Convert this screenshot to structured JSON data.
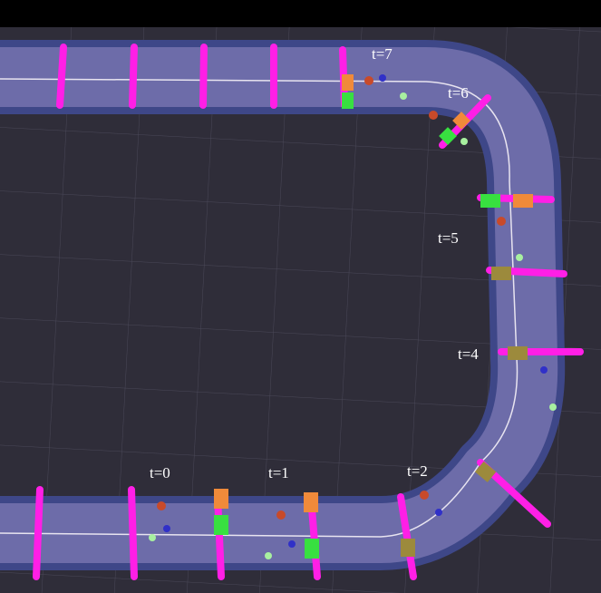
{
  "labels": [
    "t=0",
    "t=1",
    "t=2",
    "t=4",
    "t=5",
    "t=6",
    "t=7"
  ]
}
